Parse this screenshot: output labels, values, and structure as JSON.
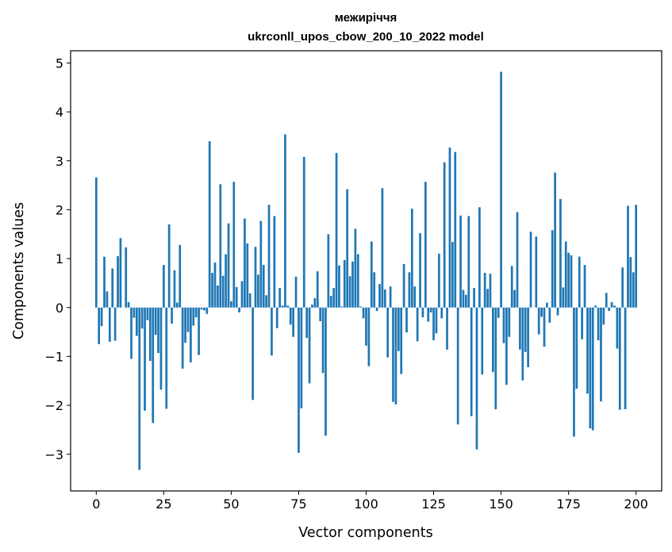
{
  "chart_data": {
    "type": "bar",
    "title": "межиріччя",
    "subtitle": "ukrconll_upos_cbow_200_10_2022 model",
    "xlabel": "Vector components",
    "ylabel": "Components values",
    "xlim": [
      -9.5,
      209.5
    ],
    "ylim": [
      -3.75,
      5.25
    ],
    "xticks": [
      0,
      25,
      50,
      75,
      100,
      125,
      150,
      175,
      200
    ],
    "yticks": [
      -3,
      -2,
      -1,
      0,
      1,
      2,
      3,
      4,
      5
    ],
    "xtick_labels": [
      "0",
      "25",
      "50",
      "75",
      "100",
      "125",
      "150",
      "175",
      "200"
    ],
    "ytick_labels": [
      "−3",
      "−2",
      "−1",
      "0",
      "1",
      "2",
      "3",
      "4",
      "5"
    ],
    "bar_color": "#1f77b4",
    "grid": false,
    "values": [
      2.66,
      -0.75,
      -0.38,
      1.04,
      0.33,
      -0.7,
      0.8,
      -0.68,
      1.05,
      1.42,
      0.0,
      1.23,
      0.11,
      -1.05,
      -0.21,
      -0.58,
      -3.32,
      -0.43,
      -2.11,
      -0.26,
      -1.09,
      -2.36,
      -0.56,
      -0.93,
      -1.68,
      0.87,
      -2.07,
      1.7,
      -0.33,
      0.76,
      0.1,
      1.28,
      -1.25,
      -0.72,
      -0.5,
      -1.12,
      -0.37,
      -0.2,
      -0.97,
      -0.04,
      -0.06,
      -0.13,
      3.4,
      0.71,
      0.92,
      0.45,
      2.52,
      0.65,
      1.09,
      1.72,
      0.13,
      2.57,
      0.42,
      -0.1,
      0.54,
      1.82,
      1.31,
      0.29,
      -1.89,
      1.24,
      0.67,
      1.77,
      0.87,
      0.25,
      2.1,
      -0.98,
      1.87,
      -0.42,
      0.4,
      0.04,
      3.54,
      0.04,
      -0.35,
      -0.6,
      0.63,
      -2.97,
      -2.06,
      3.08,
      -0.62,
      -1.55,
      0.06,
      0.19,
      0.74,
      -0.28,
      -1.34,
      -2.62,
      1.5,
      0.24,
      0.4,
      3.16,
      0.86,
      0.02,
      0.97,
      2.42,
      0.64,
      0.94,
      1.61,
      1.09,
      0.02,
      -0.22,
      -0.78,
      -1.2,
      1.35,
      0.72,
      -0.07,
      0.48,
      2.44,
      0.37,
      -1.02,
      0.43,
      -1.93,
      -1.98,
      -0.89,
      -1.36,
      0.89,
      -0.51,
      0.72,
      2.02,
      0.43,
      -0.69,
      1.52,
      -0.2,
      2.57,
      -0.29,
      -0.1,
      -0.67,
      -0.53,
      1.1,
      -0.22,
      2.97,
      -0.86,
      3.27,
      1.34,
      3.18,
      -2.39,
      1.88,
      0.36,
      0.26,
      1.87,
      -2.22,
      0.4,
      -2.9,
      2.05,
      -1.37,
      0.71,
      0.38,
      0.69,
      -1.32,
      -2.08,
      -0.21,
      4.82,
      -0.73,
      -1.58,
      -0.6,
      0.85,
      0.36,
      1.95,
      -0.86,
      -1.49,
      -0.91,
      -1.22,
      1.55,
      0.0,
      1.45,
      -0.55,
      -0.19,
      -0.8,
      0.1,
      -0.31,
      1.58,
      2.76,
      -0.16,
      2.22,
      0.41,
      1.35,
      1.12,
      1.07,
      -2.64,
      -1.66,
      1.04,
      -0.65,
      0.87,
      -1.76,
      -2.47,
      -2.51,
      0.04,
      -0.67,
      -1.92,
      -0.35,
      0.3,
      -0.07,
      0.11,
      0.04,
      -0.84,
      -2.09,
      0.82,
      -2.08,
      2.08,
      1.03,
      0.72,
      2.1
    ]
  }
}
